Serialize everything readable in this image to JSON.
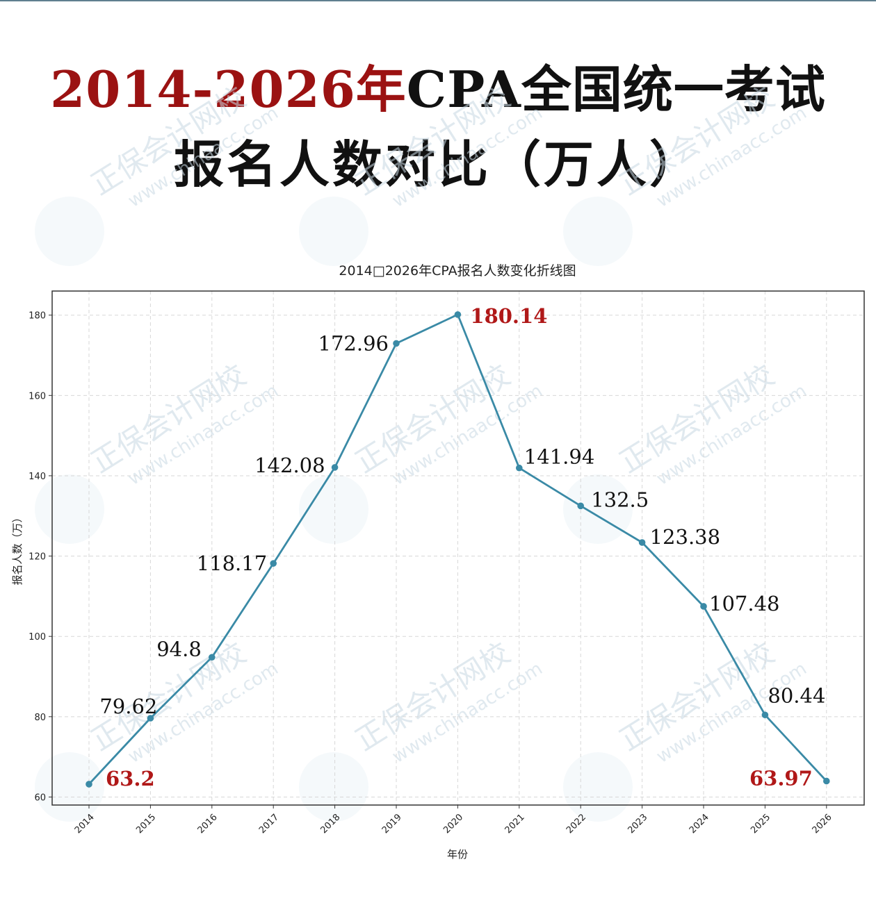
{
  "headline": {
    "line1_red": "2014-2026年",
    "line1_black": "CPA全国统一考试",
    "line2": "报名人数对比（万人）"
  },
  "colors": {
    "line": "#3a8aa6",
    "highlight": "#b01818",
    "headline_red": "#9b1212"
  },
  "chart_data": {
    "type": "line",
    "title": "2014□2026年CPA报名人数变化折线图",
    "xlabel": "年份",
    "ylabel": "报名人数（万）",
    "ylim": [
      58,
      186
    ],
    "yticks": [
      60,
      80,
      100,
      120,
      140,
      160,
      180
    ],
    "grid": true,
    "categories": [
      "2014",
      "2015",
      "2016",
      "2017",
      "2018",
      "2019",
      "2020",
      "2021",
      "2022",
      "2023",
      "2024",
      "2025",
      "2026"
    ],
    "values": [
      63.2,
      79.62,
      94.8,
      118.17,
      142.08,
      172.96,
      180.14,
      141.94,
      132.5,
      123.38,
      107.48,
      80.44,
      63.97
    ],
    "data_labels": [
      "63.2",
      "79.62",
      "94.8",
      "118.17",
      "142.08",
      "172.96",
      "180.14",
      "141.94",
      "132.5",
      "123.38",
      "107.48",
      "80.44",
      "63.97"
    ],
    "highlighted": [
      "2014",
      "2020",
      "2026"
    ]
  },
  "watermark": {
    "brand": "正保会计网校",
    "url": "www.chinaacc.com"
  }
}
